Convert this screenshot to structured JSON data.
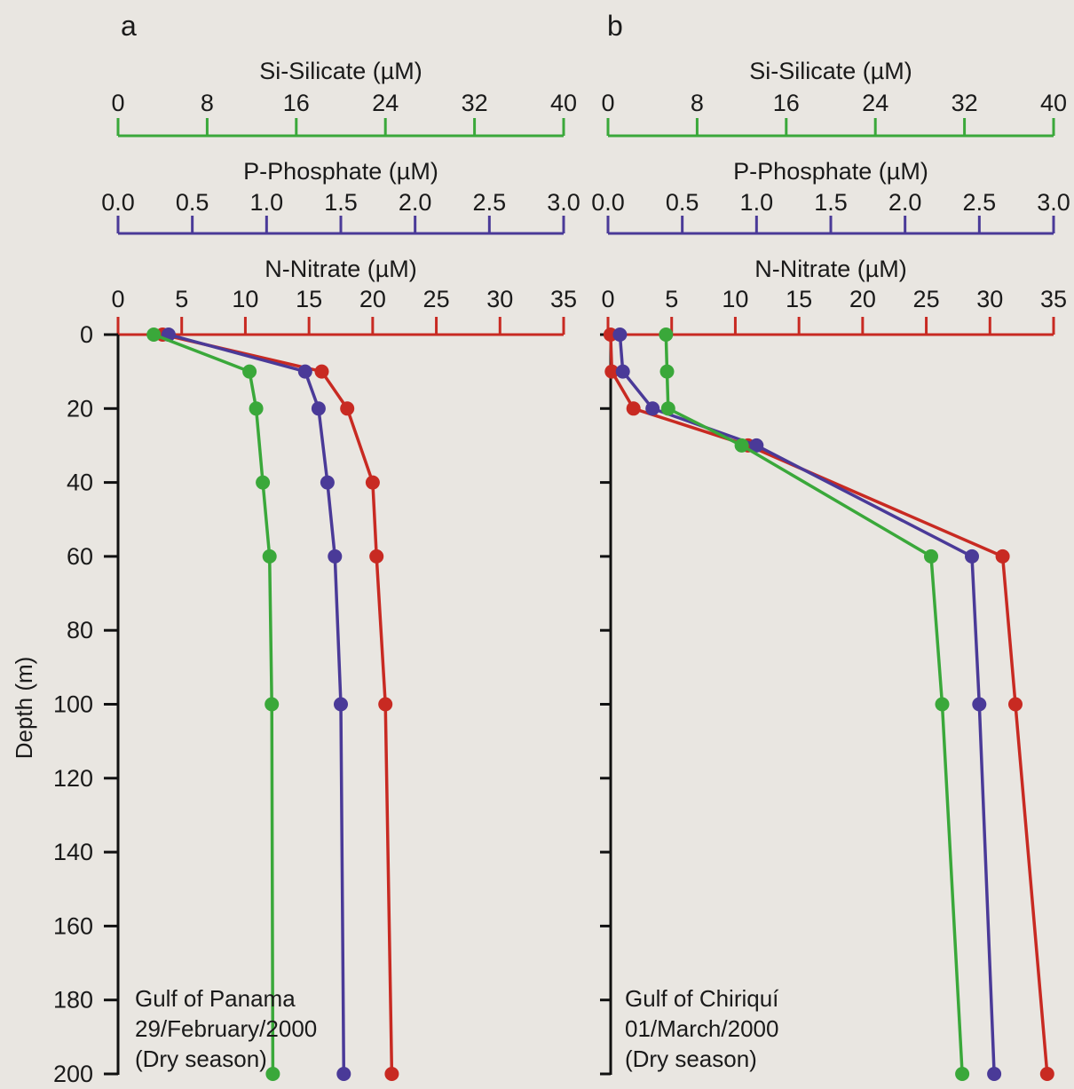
{
  "chart_data": [
    {
      "type": "line",
      "panel": "a",
      "y_axis": {
        "label": "Depth (m)",
        "range": [
          0,
          200
        ],
        "ticks": [
          0,
          20,
          40,
          60,
          80,
          100,
          120,
          140,
          160,
          180,
          200
        ],
        "inverted": true
      },
      "x_axes": [
        {
          "key": "si",
          "label": "Si-Silicate (µM)",
          "range": [
            0,
            40
          ],
          "ticks": [
            "0",
            "8",
            "16",
            "24",
            "32",
            "40"
          ],
          "color": "#3aa83a"
        },
        {
          "key": "p",
          "label": "P-Phosphate (µM)",
          "range": [
            0,
            3
          ],
          "ticks": [
            "0.0",
            "0.5",
            "1.0",
            "1.5",
            "2.0",
            "2.5",
            "3.0"
          ],
          "color": "#4a3a98"
        },
        {
          "key": "n",
          "label": "N-Nitrate (µM)",
          "range": [
            0,
            35
          ],
          "ticks": [
            "0",
            "5",
            "10",
            "15",
            "20",
            "25",
            "30",
            "35"
          ],
          "color": "#c82a22"
        }
      ],
      "series": [
        {
          "axis": "n",
          "color": "#c82a22",
          "points": [
            [
              3.5,
              0
            ],
            [
              16,
              10
            ],
            [
              18,
              20
            ],
            [
              20,
              40
            ],
            [
              20.3,
              60
            ],
            [
              21,
              100
            ],
            [
              21.5,
              200
            ]
          ]
        },
        {
          "axis": "p",
          "color": "#4a3a98",
          "points": [
            [
              0.34,
              0
            ],
            [
              1.26,
              10
            ],
            [
              1.35,
              20
            ],
            [
              1.41,
              40
            ],
            [
              1.46,
              60
            ],
            [
              1.5,
              100
            ],
            [
              1.52,
              200
            ]
          ]
        },
        {
          "axis": "si",
          "color": "#3aa83a",
          "points": [
            [
              3.2,
              0
            ],
            [
              11.8,
              10
            ],
            [
              12.4,
              20
            ],
            [
              13,
              40
            ],
            [
              13.6,
              60
            ],
            [
              13.8,
              100
            ],
            [
              13.9,
              200
            ]
          ]
        }
      ],
      "annotation": [
        "Gulf of Panama",
        "29/February/2000",
        "(Dry season)"
      ]
    },
    {
      "type": "line",
      "panel": "b",
      "y_axis": {
        "range": [
          0,
          200
        ],
        "ticks": [
          0,
          20,
          40,
          60,
          80,
          100,
          120,
          140,
          160,
          180,
          200
        ],
        "inverted": true
      },
      "x_axes": [
        {
          "key": "si",
          "label": "Si-Silicate (µM)",
          "range": [
            0,
            40
          ],
          "ticks": [
            "0",
            "8",
            "16",
            "24",
            "32",
            "40"
          ],
          "color": "#3aa83a"
        },
        {
          "key": "p",
          "label": "P-Phosphate (µM)",
          "range": [
            0,
            3
          ],
          "ticks": [
            "0.0",
            "0.5",
            "1.0",
            "1.5",
            "2.0",
            "2.5",
            "3.0"
          ],
          "color": "#4a3a98"
        },
        {
          "key": "n",
          "label": "N-Nitrate (µM)",
          "range": [
            0,
            35
          ],
          "ticks": [
            "0",
            "5",
            "10",
            "15",
            "20",
            "25",
            "30",
            "35"
          ],
          "color": "#c82a22"
        }
      ],
      "series": [
        {
          "axis": "n",
          "color": "#c82a22",
          "points": [
            [
              0.2,
              0
            ],
            [
              0.3,
              10
            ],
            [
              2,
              20
            ],
            [
              11,
              30
            ],
            [
              31,
              60
            ],
            [
              32,
              100
            ],
            [
              34.5,
              200
            ]
          ]
        },
        {
          "axis": "p",
          "color": "#4a3a98",
          "points": [
            [
              0.08,
              0
            ],
            [
              0.1,
              10
            ],
            [
              0.3,
              20
            ],
            [
              1,
              30
            ],
            [
              2.45,
              60
            ],
            [
              2.5,
              100
            ],
            [
              2.6,
              200
            ]
          ]
        },
        {
          "axis": "si",
          "color": "#3aa83a",
          "points": [
            [
              5.2,
              0
            ],
            [
              5.3,
              10
            ],
            [
              5.4,
              20
            ],
            [
              12,
              30
            ],
            [
              29,
              60
            ],
            [
              30,
              100
            ],
            [
              31.8,
              200
            ]
          ]
        }
      ],
      "annotation": [
        "Gulf of Chiriquí",
        "01/March/2000",
        "(Dry season)"
      ]
    }
  ]
}
